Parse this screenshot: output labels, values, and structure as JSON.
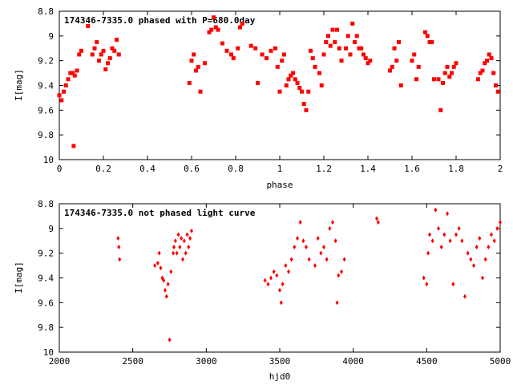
{
  "chart_data": [
    {
      "type": "scatter",
      "title": "174346-7335.0 phased with P=680.0day",
      "xlabel": "phase",
      "ylabel": "I[mag]",
      "xlim": [
        0,
        2
      ],
      "ylim": [
        8.8,
        10
      ],
      "y_inverted": true,
      "grid": false,
      "marker_color": "#ff0000",
      "x_ticks": [
        "0",
        "0.2",
        "0.4",
        "0.6",
        "0.8",
        "1",
        "1.2",
        "1.4",
        "1.6",
        "1.8",
        "2"
      ],
      "y_ticks": [
        "8.8",
        "9",
        "9.2",
        "9.4",
        "9.6",
        "9.8",
        "10"
      ],
      "series": [
        {
          "x": [
            0.0,
            0.01,
            0.02,
            0.03,
            0.04,
            0.05,
            0.06,
            0.07,
            0.08,
            0.065,
            0.09,
            0.1,
            0.13,
            0.15,
            0.16,
            0.17,
            0.18,
            0.19,
            0.2,
            0.21,
            0.22,
            0.23,
            0.24,
            0.25,
            0.26,
            0.27,
            0.59,
            0.6,
            0.61,
            0.62,
            0.63,
            0.64,
            0.66,
            0.68,
            0.69,
            0.7,
            0.71,
            0.72,
            0.74,
            0.76,
            0.78,
            0.79,
            0.81,
            0.82,
            0.83,
            0.87,
            0.89,
            0.9,
            0.92,
            0.94,
            0.96,
            0.98,
            0.99,
            1.0,
            1.01,
            1.02,
            1.03,
            1.04,
            1.05,
            1.06,
            1.07,
            1.08,
            1.09,
            1.1,
            1.11,
            1.12,
            1.13,
            1.14,
            1.15,
            1.16,
            1.18,
            1.19,
            1.2,
            1.21,
            1.22,
            1.23,
            1.24,
            1.25,
            1.26,
            1.27,
            1.28,
            1.3,
            1.31,
            1.32,
            1.33,
            1.34,
            1.35,
            1.36,
            1.37,
            1.38,
            1.39,
            1.4,
            1.41,
            1.5,
            1.51,
            1.52,
            1.53,
            1.54,
            1.55,
            1.6,
            1.61,
            1.62,
            1.63,
            1.66,
            1.67,
            1.68,
            1.69,
            1.7,
            1.72,
            1.73,
            1.74,
            1.75,
            1.76,
            1.77,
            1.78,
            1.79,
            1.8,
            1.9,
            1.91,
            1.92,
            1.93,
            1.94,
            1.95,
            1.96,
            1.97,
            1.98,
            1.99
          ],
          "y": [
            9.48,
            9.52,
            9.45,
            9.4,
            9.35,
            9.3,
            9.3,
            9.32,
            9.28,
            9.89,
            9.15,
            9.12,
            8.92,
            9.15,
            9.1,
            9.05,
            9.2,
            9.15,
            9.12,
            9.27,
            9.22,
            9.18,
            9.1,
            9.12,
            9.03,
            9.15,
            9.38,
            9.2,
            9.15,
            9.28,
            9.25,
            9.45,
            9.22,
            8.97,
            8.95,
            8.85,
            8.93,
            8.95,
            9.06,
            9.12,
            9.15,
            9.18,
            9.1,
            8.93,
            8.9,
            9.08,
            9.1,
            9.38,
            9.15,
            9.18,
            9.12,
            9.1,
            9.25,
            9.45,
            9.2,
            9.15,
            9.4,
            9.35,
            9.32,
            9.3,
            9.35,
            9.38,
            9.42,
            9.45,
            9.55,
            9.6,
            9.45,
            9.12,
            9.18,
            9.25,
            9.3,
            9.4,
            9.15,
            9.05,
            9.0,
            9.08,
            8.95,
            9.05,
            8.95,
            9.1,
            9.2,
            9.1,
            9.0,
            9.15,
            8.9,
            9.05,
            9.0,
            9.1,
            9.1,
            9.15,
            9.18,
            9.22,
            9.2,
            9.28,
            9.25,
            9.1,
            9.2,
            9.05,
            9.4,
            9.2,
            9.15,
            9.35,
            9.25,
            8.97,
            9.0,
            9.05,
            9.05,
            9.35,
            9.35,
            9.6,
            9.38,
            9.3,
            9.25,
            9.33,
            9.3,
            9.25,
            9.22,
            9.35,
            9.3,
            9.28,
            9.22,
            9.2,
            9.15,
            9.18,
            9.3,
            9.4,
            9.45
          ]
        }
      ]
    },
    {
      "type": "scatter",
      "title": "174346-7335.0 not phased light curve",
      "xlabel": "hjd0",
      "ylabel": "I[mag]",
      "xlim": [
        2000,
        5000
      ],
      "ylim": [
        8.8,
        10
      ],
      "y_inverted": true,
      "grid": false,
      "marker_color": "#ff0000",
      "x_ticks": [
        "2000",
        "2500",
        "3000",
        "3500",
        "4000",
        "4500",
        "5000"
      ],
      "y_ticks": [
        "8.8",
        "9",
        "9.2",
        "9.4",
        "9.6",
        "9.8",
        "10"
      ],
      "series": [
        {
          "x": [
            2400,
            2405,
            2410,
            2650,
            2670,
            2680,
            2690,
            2700,
            2710,
            2720,
            2730,
            2740,
            2750,
            2760,
            2775,
            2780,
            2790,
            2800,
            2810,
            2820,
            2830,
            2840,
            2850,
            2860,
            2870,
            2880,
            2890,
            2900,
            3400,
            3420,
            3440,
            3460,
            3480,
            3500,
            3510,
            3520,
            3540,
            3560,
            3580,
            3600,
            3620,
            3640,
            3660,
            3680,
            3700,
            3740,
            3760,
            3780,
            3800,
            3820,
            3840,
            3860,
            3880,
            3900,
            3920,
            3940,
            3890,
            4160,
            4170,
            4480,
            4500,
            4510,
            4520,
            4540,
            4560,
            4580,
            4600,
            4620,
            4640,
            4660,
            4680,
            4700,
            4720,
            4740,
            4760,
            4780,
            4800,
            4820,
            4840,
            4860,
            4880,
            4900,
            4920,
            4940,
            4960,
            4980,
            5000
          ],
          "y": [
            9.08,
            9.15,
            9.25,
            9.3,
            9.28,
            9.2,
            9.32,
            9.4,
            9.42,
            9.5,
            9.55,
            9.45,
            9.9,
            9.35,
            9.2,
            9.15,
            9.1,
            9.2,
            9.05,
            9.15,
            9.08,
            9.25,
            9.1,
            9.2,
            9.05,
            9.15,
            9.08,
            9.02,
            9.42,
            9.45,
            9.4,
            9.35,
            9.38,
            9.5,
            9.6,
            9.45,
            9.3,
            9.35,
            9.25,
            9.15,
            9.08,
            8.95,
            9.1,
            9.15,
            9.25,
            9.3,
            9.08,
            9.2,
            9.15,
            9.25,
            9.0,
            8.95,
            9.1,
            9.38,
            9.35,
            9.25,
            9.6,
            8.92,
            8.95,
            9.4,
            9.45,
            9.2,
            9.05,
            9.1,
            8.85,
            9.0,
            9.15,
            9.05,
            8.88,
            9.1,
            9.45,
            9.05,
            9.0,
            9.1,
            9.55,
            9.2,
            9.25,
            9.3,
            9.15,
            9.08,
            9.4,
            9.25,
            9.15,
            9.05,
            9.1,
            9.0,
            8.95
          ]
        }
      ]
    }
  ]
}
